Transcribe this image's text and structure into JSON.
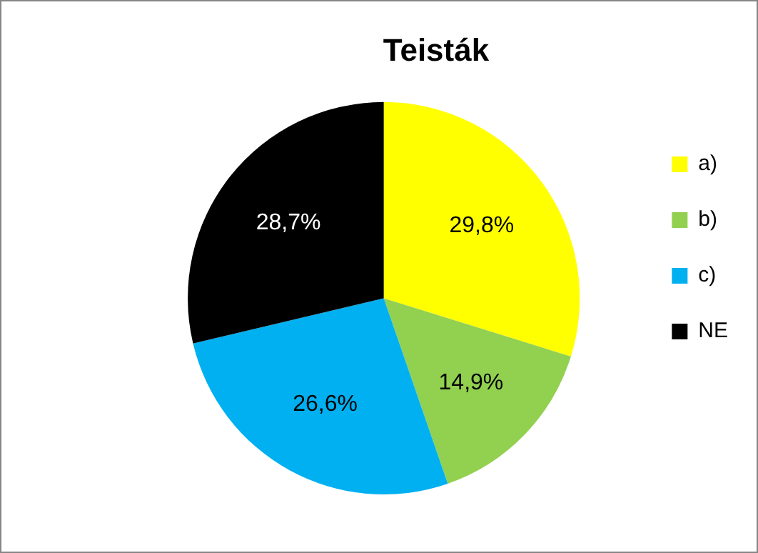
{
  "chart_data": {
    "type": "pie",
    "title": "Teisták",
    "categories": [
      "a)",
      "b)",
      "c)",
      "NE"
    ],
    "values": [
      29.8,
      14.9,
      26.6,
      28.7
    ],
    "colors": [
      "#ffff00",
      "#92d050",
      "#00b0f0",
      "#000000"
    ],
    "value_labels": [
      "29,8%",
      "14,9%",
      "26,6%",
      "28,7%"
    ],
    "legend": "right"
  }
}
